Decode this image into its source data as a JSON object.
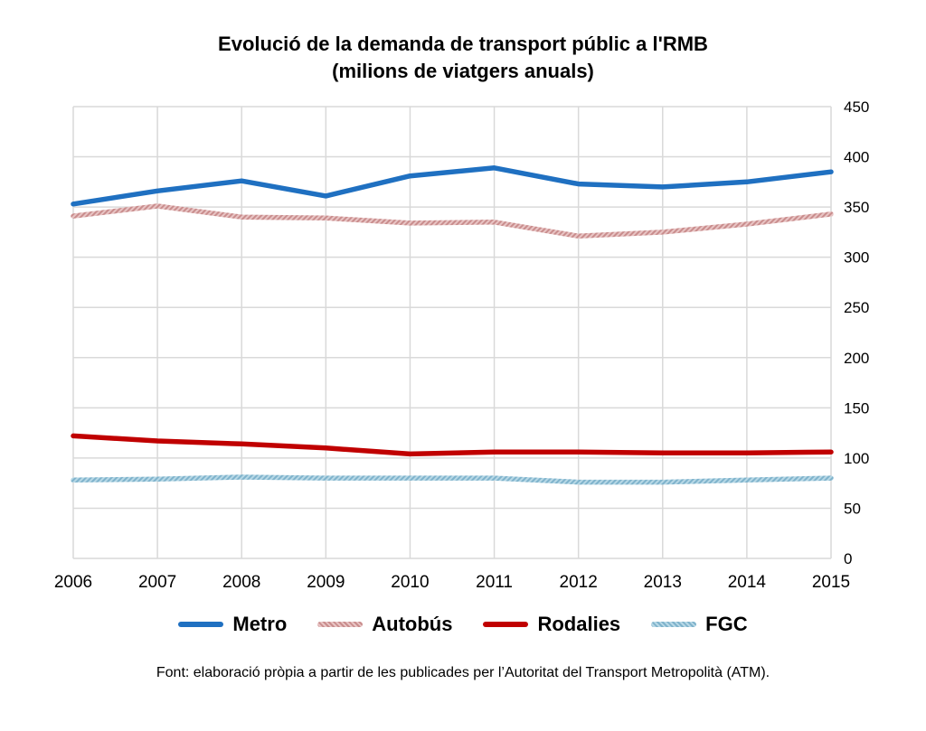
{
  "chart_data": {
    "type": "line",
    "title": "Evolució de la demanda de transport públic a l'RMB",
    "subtitle": "(milions de viatgers anuals)",
    "x": [
      "2006",
      "2007",
      "2008",
      "2009",
      "2010",
      "2011",
      "2012",
      "2013",
      "2014",
      "2015"
    ],
    "yticks": [
      "0",
      "50",
      "100",
      "150",
      "200",
      "250",
      "300",
      "350",
      "400",
      "450"
    ],
    "ylim": [
      0,
      450
    ],
    "y_axis_side": "right",
    "grid": true,
    "legend_position": "bottom",
    "series": [
      {
        "name": "Metro",
        "color": "#1f70c1",
        "style": "solid",
        "values": [
          353,
          366,
          376,
          361,
          381,
          389,
          373,
          370,
          375,
          385
        ]
      },
      {
        "name": "Autobús",
        "color": "#d9a3a3",
        "style": "hatched",
        "values": [
          341,
          351,
          340,
          339,
          334,
          335,
          321,
          325,
          333,
          343
        ]
      },
      {
        "name": "Rodalies",
        "color": "#c00000",
        "style": "solid",
        "values": [
          122,
          117,
          114,
          110,
          104,
          106,
          106,
          105,
          105,
          106
        ]
      },
      {
        "name": "FGC",
        "color": "#93c3d9",
        "style": "hatched",
        "values": [
          78,
          79,
          81,
          80,
          80,
          80,
          76,
          76,
          78,
          80
        ]
      }
    ]
  },
  "source_note": "Font: elaboració pròpia a partir de les publicades per l’Autoritat del Transport Metropolità (ATM)."
}
